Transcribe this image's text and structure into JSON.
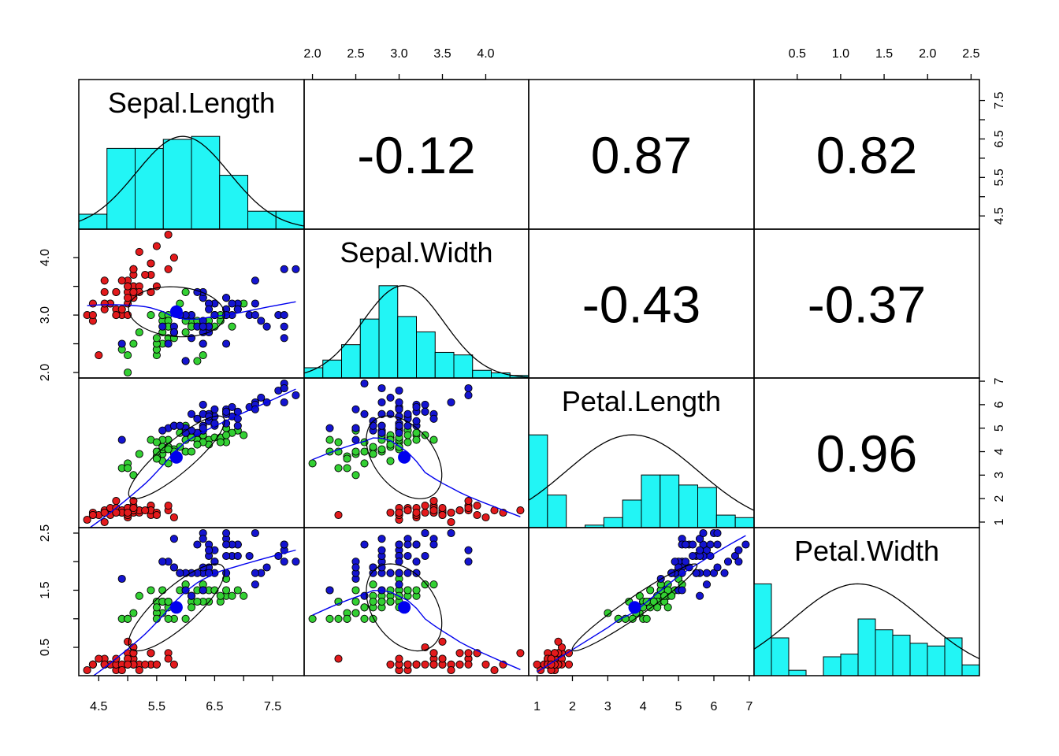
{
  "chart_data": {
    "type": "scatter",
    "variables": [
      "Sepal.Length",
      "Sepal.Width",
      "Petal.Length",
      "Petal.Width"
    ],
    "ranges": {
      "Sepal.Length": [
        4.3,
        7.9
      ],
      "Sepal.Width": [
        2.0,
        4.4
      ],
      "Petal.Length": [
        1.0,
        6.9
      ],
      "Petal.Width": [
        0.1,
        2.5
      ]
    },
    "correlations": [
      {
        "row": 0,
        "col": 1,
        "text": "-0.12"
      },
      {
        "row": 0,
        "col": 2,
        "text": "0.87"
      },
      {
        "row": 0,
        "col": 3,
        "text": "0.82"
      },
      {
        "row": 1,
        "col": 2,
        "text": "-0.43"
      },
      {
        "row": 1,
        "col": 3,
        "text": "-0.37"
      },
      {
        "row": 2,
        "col": 3,
        "text": "0.96"
      }
    ],
    "axes": {
      "top": [
        {
          "col": 1,
          "ticks": [
            2.0,
            2.5,
            3.0,
            3.5,
            4.0
          ],
          "labels": [
            "2.0",
            "2.5",
            "3.0",
            "3.5",
            "4.0"
          ]
        },
        {
          "col": 3,
          "ticks": [
            0.5,
            1.0,
            1.5,
            2.0,
            2.5
          ],
          "labels": [
            "0.5",
            "1.0",
            "1.5",
            "2.0",
            "2.5"
          ]
        }
      ],
      "bottom": [
        {
          "col": 0,
          "ticks": [
            4.5,
            5.5,
            6.5,
            7.5
          ],
          "minor": [
            5.0,
            6.0,
            7.0
          ],
          "labels": [
            "4.5",
            "5.5",
            "6.5",
            "7.5"
          ]
        },
        {
          "col": 2,
          "ticks": [
            1,
            2,
            3,
            4,
            5,
            6,
            7
          ],
          "labels": [
            "1",
            "2",
            "3",
            "4",
            "5",
            "6",
            "7"
          ]
        }
      ],
      "left": [
        {
          "row": 1,
          "ticks": [
            2.0,
            3.0,
            4.0
          ],
          "minor": [
            2.5,
            3.5
          ],
          "labels": [
            "2.0",
            "3.0",
            "4.0"
          ]
        },
        {
          "row": 3,
          "ticks": [
            0.5,
            1.5,
            2.5
          ],
          "minor": [
            1.0,
            2.0
          ],
          "labels": [
            "0.5",
            "1.5",
            "2.5"
          ]
        }
      ],
      "right": [
        {
          "row": 0,
          "ticks": [
            4.5,
            5.5,
            6.5,
            7.5
          ],
          "minor": [
            5.0,
            6.0,
            7.0
          ],
          "labels": [
            "4.5",
            "5.5",
            "6.5",
            "7.5"
          ]
        },
        {
          "row": 2,
          "ticks": [
            1,
            2,
            3,
            4,
            5,
            6,
            7
          ],
          "labels": [
            "1",
            "2",
            "3",
            "4",
            "5",
            "6",
            "7"
          ]
        }
      ]
    },
    "histograms": [
      {
        "var": "Sepal.Length",
        "breaks": [
          4.0,
          4.5,
          5.0,
          5.5,
          6.0,
          6.5,
          7.0,
          7.5,
          8.0
        ],
        "counts": [
          5,
          27,
          27,
          30,
          31,
          18,
          6,
          6
        ]
      },
      {
        "var": "Sepal.Width",
        "breaks": [
          2.0,
          2.2,
          2.4,
          2.6,
          2.8,
          3.0,
          3.2,
          3.4,
          3.6,
          3.8,
          4.0,
          4.2,
          4.4
        ],
        "counts": [
          4,
          7,
          13,
          23,
          36,
          24,
          18,
          10,
          9,
          3,
          2,
          1
        ]
      },
      {
        "var": "Petal.Length",
        "breaks": [
          1.0,
          1.5,
          2.0,
          2.5,
          3.0,
          3.5,
          4.0,
          4.5,
          5.0,
          5.5,
          6.0,
          6.5,
          7.0
        ],
        "counts": [
          37,
          13,
          0,
          1,
          4,
          11,
          21,
          21,
          17,
          16,
          5,
          4
        ]
      },
      {
        "var": "Petal.Width",
        "breaks": [
          0.0,
          0.2,
          0.4,
          0.6,
          0.8,
          1.0,
          1.2,
          1.4,
          1.6,
          1.8,
          2.0,
          2.2,
          2.4,
          2.6
        ],
        "counts": [
          34,
          14,
          2,
          0,
          7,
          8,
          21,
          17,
          15,
          12,
          11,
          14,
          4
        ]
      }
    ],
    "species_colors": {
      "setosa": "#e31a1c",
      "versicolor": "#33d033",
      "virginica": "#1414d0"
    },
    "hist_fill": "#22f5f5",
    "smooth_color": "#0000ee",
    "centroid": {
      "Sepal.Length": 5.84,
      "Sepal.Width": 3.06,
      "Petal.Length": 3.76,
      "Petal.Width": 1.2
    },
    "iris": {
      "setosa": [
        [
          5.1,
          3.5,
          1.4,
          0.2
        ],
        [
          4.9,
          3.0,
          1.4,
          0.2
        ],
        [
          4.7,
          3.2,
          1.3,
          0.2
        ],
        [
          4.6,
          3.1,
          1.5,
          0.2
        ],
        [
          5.0,
          3.6,
          1.4,
          0.2
        ],
        [
          5.4,
          3.9,
          1.7,
          0.4
        ],
        [
          4.6,
          3.4,
          1.4,
          0.3
        ],
        [
          5.0,
          3.4,
          1.5,
          0.2
        ],
        [
          4.4,
          2.9,
          1.4,
          0.2
        ],
        [
          4.9,
          3.1,
          1.5,
          0.1
        ],
        [
          5.4,
          3.7,
          1.5,
          0.2
        ],
        [
          4.8,
          3.4,
          1.6,
          0.2
        ],
        [
          4.8,
          3.0,
          1.4,
          0.1
        ],
        [
          4.3,
          3.0,
          1.1,
          0.1
        ],
        [
          5.8,
          4.0,
          1.2,
          0.2
        ],
        [
          5.7,
          4.4,
          1.5,
          0.4
        ],
        [
          5.4,
          3.9,
          1.3,
          0.4
        ],
        [
          5.1,
          3.5,
          1.4,
          0.3
        ],
        [
          5.7,
          3.8,
          1.7,
          0.3
        ],
        [
          5.1,
          3.8,
          1.5,
          0.3
        ],
        [
          5.4,
          3.4,
          1.7,
          0.2
        ],
        [
          5.1,
          3.7,
          1.5,
          0.4
        ],
        [
          4.6,
          3.6,
          1.0,
          0.2
        ],
        [
          5.1,
          3.3,
          1.7,
          0.5
        ],
        [
          4.8,
          3.4,
          1.9,
          0.2
        ],
        [
          5.0,
          3.0,
          1.6,
          0.2
        ],
        [
          5.0,
          3.4,
          1.6,
          0.4
        ],
        [
          5.2,
          3.5,
          1.5,
          0.2
        ],
        [
          5.2,
          3.4,
          1.4,
          0.2
        ],
        [
          4.7,
          3.2,
          1.6,
          0.2
        ],
        [
          4.8,
          3.1,
          1.6,
          0.2
        ],
        [
          5.4,
          3.4,
          1.5,
          0.4
        ],
        [
          5.2,
          4.1,
          1.5,
          0.1
        ],
        [
          5.5,
          4.2,
          1.4,
          0.2
        ],
        [
          4.9,
          3.1,
          1.5,
          0.2
        ],
        [
          5.0,
          3.2,
          1.2,
          0.2
        ],
        [
          5.5,
          3.5,
          1.3,
          0.2
        ],
        [
          4.9,
          3.6,
          1.4,
          0.1
        ],
        [
          4.4,
          3.0,
          1.3,
          0.2
        ],
        [
          5.1,
          3.4,
          1.5,
          0.2
        ],
        [
          5.0,
          3.5,
          1.3,
          0.3
        ],
        [
          4.5,
          2.3,
          1.3,
          0.3
        ],
        [
          4.4,
          3.2,
          1.3,
          0.2
        ],
        [
          5.0,
          3.5,
          1.6,
          0.6
        ],
        [
          5.1,
          3.8,
          1.9,
          0.4
        ],
        [
          4.8,
          3.0,
          1.4,
          0.3
        ],
        [
          5.1,
          3.8,
          1.6,
          0.2
        ],
        [
          4.6,
          3.2,
          1.4,
          0.2
        ],
        [
          5.3,
          3.7,
          1.5,
          0.2
        ],
        [
          5.0,
          3.3,
          1.4,
          0.2
        ]
      ],
      "versicolor": [
        [
          7.0,
          3.2,
          4.7,
          1.4
        ],
        [
          6.4,
          3.2,
          4.5,
          1.5
        ],
        [
          6.9,
          3.1,
          4.9,
          1.5
        ],
        [
          5.5,
          2.3,
          4.0,
          1.3
        ],
        [
          6.5,
          2.8,
          4.6,
          1.5
        ],
        [
          5.7,
          2.8,
          4.5,
          1.3
        ],
        [
          6.3,
          3.3,
          4.7,
          1.6
        ],
        [
          4.9,
          2.4,
          3.3,
          1.0
        ],
        [
          6.6,
          2.9,
          4.6,
          1.3
        ],
        [
          5.2,
          2.7,
          3.9,
          1.4
        ],
        [
          5.0,
          2.0,
          3.5,
          1.0
        ],
        [
          5.9,
          3.0,
          4.2,
          1.5
        ],
        [
          6.0,
          2.2,
          4.0,
          1.0
        ],
        [
          6.1,
          2.9,
          4.7,
          1.4
        ],
        [
          5.6,
          2.9,
          3.6,
          1.3
        ],
        [
          6.7,
          3.1,
          4.4,
          1.4
        ],
        [
          5.6,
          3.0,
          4.5,
          1.5
        ],
        [
          5.8,
          2.7,
          4.1,
          1.0
        ],
        [
          6.2,
          2.2,
          4.5,
          1.5
        ],
        [
          5.6,
          2.5,
          3.9,
          1.1
        ],
        [
          5.9,
          3.2,
          4.8,
          1.8
        ],
        [
          6.1,
          2.8,
          4.0,
          1.3
        ],
        [
          6.3,
          2.5,
          4.9,
          1.5
        ],
        [
          6.1,
          2.8,
          4.7,
          1.2
        ],
        [
          6.4,
          2.9,
          4.3,
          1.3
        ],
        [
          6.6,
          3.0,
          4.4,
          1.4
        ],
        [
          6.8,
          2.8,
          4.8,
          1.4
        ],
        [
          6.7,
          3.0,
          5.0,
          1.7
        ],
        [
          6.0,
          2.9,
          4.5,
          1.5
        ],
        [
          5.7,
          2.6,
          3.5,
          1.0
        ],
        [
          5.5,
          2.4,
          3.8,
          1.1
        ],
        [
          5.5,
          2.4,
          3.7,
          1.0
        ],
        [
          5.8,
          2.7,
          3.9,
          1.2
        ],
        [
          6.0,
          2.7,
          5.1,
          1.6
        ],
        [
          5.4,
          3.0,
          4.5,
          1.5
        ],
        [
          6.0,
          3.4,
          4.5,
          1.6
        ],
        [
          6.7,
          3.1,
          4.7,
          1.5
        ],
        [
          6.3,
          2.3,
          4.4,
          1.3
        ],
        [
          5.6,
          3.0,
          4.1,
          1.3
        ],
        [
          5.5,
          2.5,
          4.0,
          1.3
        ],
        [
          5.5,
          2.6,
          4.4,
          1.2
        ],
        [
          6.1,
          3.0,
          4.6,
          1.4
        ],
        [
          5.8,
          2.6,
          4.0,
          1.2
        ],
        [
          5.0,
          2.3,
          3.3,
          1.0
        ],
        [
          5.6,
          2.7,
          4.2,
          1.3
        ],
        [
          5.7,
          3.0,
          4.2,
          1.2
        ],
        [
          5.7,
          2.9,
          4.2,
          1.3
        ],
        [
          6.2,
          2.9,
          4.3,
          1.3
        ],
        [
          5.1,
          2.5,
          3.0,
          1.1
        ],
        [
          5.7,
          2.8,
          4.1,
          1.3
        ]
      ],
      "virginica": [
        [
          6.3,
          3.3,
          6.0,
          2.5
        ],
        [
          5.8,
          2.7,
          5.1,
          1.9
        ],
        [
          7.1,
          3.0,
          5.9,
          2.1
        ],
        [
          6.3,
          2.9,
          5.6,
          1.8
        ],
        [
          6.5,
          3.0,
          5.8,
          2.2
        ],
        [
          7.6,
          3.0,
          6.6,
          2.1
        ],
        [
          4.9,
          2.5,
          4.5,
          1.7
        ],
        [
          7.3,
          2.9,
          6.3,
          1.8
        ],
        [
          6.7,
          2.5,
          5.8,
          1.8
        ],
        [
          7.2,
          3.6,
          6.1,
          2.5
        ],
        [
          6.5,
          3.2,
          5.1,
          2.0
        ],
        [
          6.4,
          2.7,
          5.3,
          1.9
        ],
        [
          6.8,
          3.0,
          5.5,
          2.1
        ],
        [
          5.7,
          2.5,
          5.0,
          2.0
        ],
        [
          5.8,
          2.8,
          5.1,
          2.4
        ],
        [
          6.4,
          3.2,
          5.3,
          2.3
        ],
        [
          6.5,
          3.0,
          5.5,
          1.8
        ],
        [
          7.7,
          3.8,
          6.7,
          2.2
        ],
        [
          7.7,
          2.6,
          6.9,
          2.3
        ],
        [
          6.0,
          2.2,
          5.0,
          1.5
        ],
        [
          6.9,
          3.2,
          5.7,
          2.3
        ],
        [
          5.6,
          2.8,
          4.9,
          2.0
        ],
        [
          7.7,
          2.8,
          6.7,
          2.0
        ],
        [
          6.3,
          2.7,
          4.9,
          1.8
        ],
        [
          6.7,
          3.3,
          5.7,
          2.1
        ],
        [
          7.2,
          3.2,
          6.0,
          1.8
        ],
        [
          6.2,
          2.8,
          4.8,
          1.8
        ],
        [
          6.1,
          3.0,
          4.9,
          1.8
        ],
        [
          6.4,
          2.8,
          5.6,
          2.1
        ],
        [
          7.2,
          3.0,
          5.8,
          1.6
        ],
        [
          7.4,
          2.8,
          6.1,
          1.9
        ],
        [
          7.9,
          3.8,
          6.4,
          2.0
        ],
        [
          6.4,
          2.8,
          5.6,
          2.2
        ],
        [
          6.3,
          2.8,
          5.1,
          1.5
        ],
        [
          6.1,
          2.6,
          5.6,
          1.4
        ],
        [
          7.7,
          3.0,
          6.1,
          2.3
        ],
        [
          6.3,
          3.4,
          5.6,
          2.4
        ],
        [
          6.4,
          3.1,
          5.5,
          1.8
        ],
        [
          6.0,
          3.0,
          4.8,
          1.8
        ],
        [
          6.9,
          3.1,
          5.4,
          2.1
        ],
        [
          6.7,
          3.1,
          5.6,
          2.4
        ],
        [
          6.9,
          3.1,
          5.1,
          2.3
        ],
        [
          5.8,
          2.7,
          5.1,
          1.9
        ],
        [
          6.8,
          3.2,
          5.9,
          2.3
        ],
        [
          6.7,
          3.3,
          5.7,
          2.5
        ],
        [
          6.7,
          3.0,
          5.2,
          2.3
        ],
        [
          6.3,
          2.5,
          5.0,
          1.9
        ],
        [
          6.5,
          3.0,
          5.2,
          2.0
        ],
        [
          6.2,
          3.4,
          5.4,
          2.3
        ],
        [
          5.9,
          3.0,
          5.1,
          1.8
        ]
      ]
    }
  }
}
